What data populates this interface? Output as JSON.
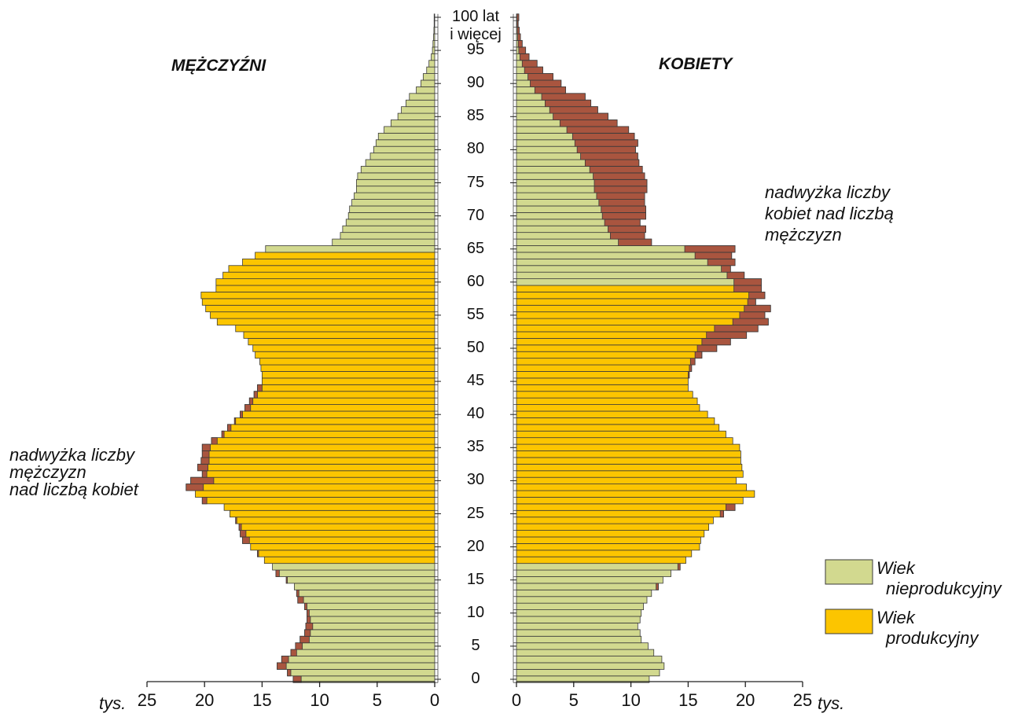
{
  "chart_data": {
    "type": "population-pyramid",
    "series": [
      {
        "name": "MĘŻCZYŹNI",
        "side": "left",
        "productive": [
          18,
          64
        ],
        "values": [
          12.3,
          12.8,
          13.7,
          13.3,
          12.5,
          12.1,
          11.7,
          11.3,
          11.2,
          11.1,
          11.1,
          11.3,
          11.9,
          12.0,
          12.2,
          12.9,
          13.8,
          14.1,
          14.8,
          15.4,
          16.0,
          16.7,
          16.9,
          17.0,
          17.3,
          17.8,
          18.3,
          20.2,
          20.8,
          21.6,
          21.2,
          20.2,
          20.6,
          20.3,
          20.2,
          20.2,
          19.4,
          18.5,
          18.0,
          17.4,
          16.9,
          16.5,
          16.1,
          15.7,
          15.4,
          15.0,
          15.0,
          15.1,
          15.2,
          15.6,
          15.8,
          16.2,
          16.6,
          17.3,
          18.9,
          19.5,
          19.9,
          20.2,
          20.3,
          19.0,
          19.0,
          18.4,
          17.9,
          16.7,
          15.6,
          14.7,
          8.9,
          8.2,
          8.0,
          7.7,
          7.5,
          7.4,
          7.2,
          7.0,
          6.8,
          6.8,
          6.7,
          6.4,
          6.0,
          5.6,
          5.3,
          5.1,
          4.9,
          4.4,
          3.8,
          3.2,
          2.9,
          2.5,
          2.2,
          1.6,
          1.2,
          1.0,
          0.7,
          0.5,
          0.3,
          0.2,
          0.15,
          0.1,
          0.07,
          0.05,
          0.05
        ]
      },
      {
        "name": "KOBIETY",
        "side": "right",
        "productive": [
          18,
          59
        ],
        "values": [
          11.6,
          12.5,
          12.9,
          12.7,
          12.0,
          11.5,
          10.9,
          10.8,
          10.6,
          10.8,
          10.9,
          11.1,
          11.4,
          11.8,
          12.4,
          12.8,
          13.5,
          14.3,
          14.8,
          15.3,
          16.0,
          16.1,
          16.4,
          16.8,
          17.2,
          18.1,
          19.1,
          19.8,
          20.8,
          20.1,
          19.2,
          19.8,
          19.7,
          19.6,
          19.6,
          19.5,
          18.9,
          18.3,
          17.7,
          17.3,
          16.7,
          16.0,
          15.8,
          15.4,
          15.0,
          15.0,
          15.1,
          15.3,
          15.6,
          16.2,
          17.5,
          18.7,
          20.1,
          21.1,
          22.0,
          21.7,
          22.2,
          20.9,
          21.7,
          21.4,
          21.4,
          19.9,
          18.7,
          19.1,
          18.8,
          19.1,
          11.8,
          11.2,
          11.3,
          10.8,
          11.3,
          11.3,
          11.2,
          11.2,
          11.4,
          11.4,
          11.2,
          11.0,
          10.7,
          10.6,
          10.4,
          10.6,
          10.3,
          9.8,
          8.8,
          8.0,
          7.1,
          6.5,
          6.0,
          4.3,
          3.9,
          3.2,
          2.3,
          1.8,
          1.1,
          0.8,
          0.5,
          0.35,
          0.25,
          0.15,
          0.2
        ]
      }
    ],
    "legend": [
      {
        "name": "Wiek\nnieprodukcyjny",
        "color": "#d2d98f"
      },
      {
        "name": "Wiek\nprodukcyjny",
        "color": "#fcc500"
      }
    ],
    "excess_color": "#a9553f",
    "xlim": [
      0,
      25
    ],
    "xticks": [
      0,
      5,
      10,
      15,
      20,
      25
    ],
    "x_unit": "tys.",
    "ylim": [
      0,
      100
    ],
    "yticks": [
      0,
      5,
      10,
      15,
      20,
      25,
      30,
      35,
      40,
      45,
      50,
      55,
      60,
      65,
      70,
      75,
      80,
      85,
      90,
      95,
      {
        "value": 100,
        "label": "100 lat\ni więcej"
      }
    ],
    "annotations": [
      "nadwyżka liczby\nmężczyzn\nnad liczbą kobiet",
      "nadwyżka liczby\nkobiet nad liczbą\nmężczyzn"
    ]
  }
}
